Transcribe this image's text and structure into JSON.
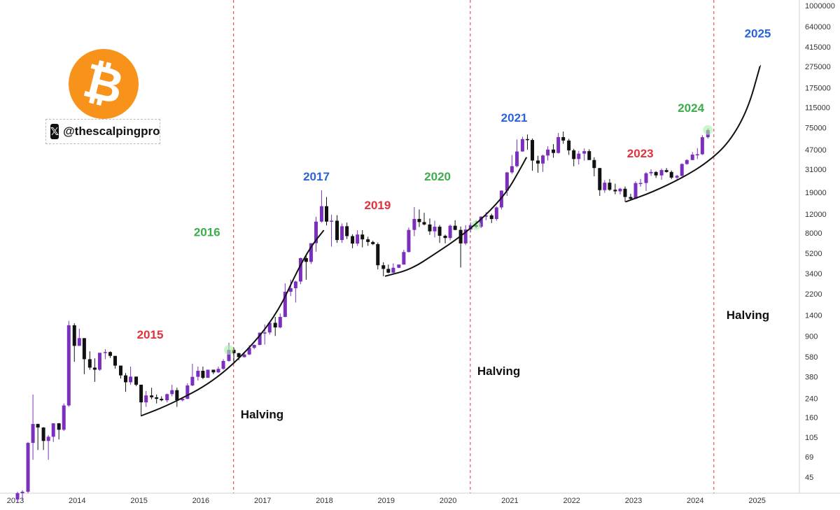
{
  "brand": {
    "logo_glyph": "₿",
    "x_glyph": "𝕏",
    "handle": "@thescalpingpro",
    "logo_color": "#f7931a"
  },
  "colors": {
    "bull": "#7b2fbe",
    "bear": "#111111",
    "red": "#e0323c",
    "green": "#3bad4a",
    "blue": "#2a63d8",
    "halving_line": "#e0323c"
  },
  "chart_data": {
    "type": "candlestick",
    "scale": "log",
    "ylim": [
      28,
      1000000
    ],
    "y_ticks": [
      "1000000",
      "640000",
      "415000",
      "275000",
      "175000",
      "115000",
      "75000",
      "47000",
      "31000",
      "19000",
      "12000",
      "8000",
      "5200",
      "3400",
      "2200",
      "1400",
      "900",
      "580",
      "380",
      "240",
      "160",
      "105",
      "69",
      "45"
    ],
    "x_ticks": [
      "2013",
      "2014",
      "2015",
      "2016",
      "2017",
      "2018",
      "2019",
      "2020",
      "2021",
      "2022",
      "2023",
      "2024",
      "2025"
    ],
    "halvings": [
      {
        "date": 2016.53,
        "label": "Halving"
      },
      {
        "date": 2020.36,
        "label": "Halving"
      },
      {
        "date": 2024.3,
        "label": "Halving"
      }
    ],
    "year_labels": [
      {
        "text": "2015",
        "color": "red",
        "year": 2015.18,
        "price": 850
      },
      {
        "text": "2016",
        "color": "green",
        "year": 2016.1,
        "price": 7500
      },
      {
        "text": "2017",
        "color": "blue",
        "year": 2017.87,
        "price": 24500
      },
      {
        "text": "2019",
        "color": "red",
        "year": 2018.86,
        "price": 13300
      },
      {
        "text": "2020",
        "color": "green",
        "year": 2019.83,
        "price": 24500
      },
      {
        "text": "2021",
        "color": "blue",
        "year": 2021.07,
        "price": 85000
      },
      {
        "text": "2023",
        "color": "red",
        "year": 2023.11,
        "price": 40000
      },
      {
        "text": "2024",
        "color": "green",
        "year": 2023.93,
        "price": 105000
      },
      {
        "text": "2025",
        "color": "blue",
        "year": 2025.01,
        "price": 510000
      }
    ],
    "curves": [
      {
        "points": [
          [
            2015.03,
            165
          ],
          [
            2015.5,
            210
          ],
          [
            2016.2,
            340
          ],
          [
            2016.8,
            700
          ],
          [
            2017.25,
            1500
          ],
          [
            2017.55,
            3500
          ],
          [
            2017.78,
            6000
          ],
          [
            2017.99,
            8500
          ]
        ]
      },
      {
        "points": [
          [
            2018.98,
            3200
          ],
          [
            2019.4,
            3700
          ],
          [
            2019.8,
            5200
          ],
          [
            2020.2,
            7400
          ],
          [
            2020.6,
            11500
          ],
          [
            2020.95,
            19000
          ],
          [
            2021.15,
            30000
          ],
          [
            2021.27,
            40000
          ]
        ]
      },
      {
        "points": [
          [
            2022.87,
            15500
          ],
          [
            2023.3,
            19000
          ],
          [
            2023.8,
            26000
          ],
          [
            2024.2,
            36000
          ],
          [
            2024.55,
            55000
          ],
          [
            2024.85,
            110000
          ],
          [
            2025.05,
            280000
          ]
        ]
      }
    ],
    "monthly_candles": [
      [
        2013.0,
        28,
        33,
        26,
        32
      ],
      [
        2013.08,
        32,
        34,
        28,
        33
      ],
      [
        2013.17,
        33,
        95,
        32,
        93
      ],
      [
        2013.25,
        93,
        260,
        65,
        139
      ],
      [
        2013.33,
        139,
        140,
        80,
        129
      ],
      [
        2013.42,
        129,
        130,
        80,
        97
      ],
      [
        2013.5,
        97,
        110,
        65,
        106
      ],
      [
        2013.58,
        106,
        125,
        95,
        141
      ],
      [
        2013.67,
        141,
        142,
        100,
        123
      ],
      [
        2013.75,
        123,
        215,
        120,
        206
      ],
      [
        2013.83,
        206,
        1240,
        200,
        1130
      ],
      [
        2013.92,
        1130,
        1180,
        520,
        730
      ],
      [
        2014.0,
        730,
        1050,
        730,
        860
      ],
      [
        2014.08,
        860,
        860,
        400,
        550
      ],
      [
        2014.17,
        550,
        650,
        440,
        460
      ],
      [
        2014.25,
        460,
        560,
        340,
        440
      ],
      [
        2014.33,
        440,
        630,
        430,
        630
      ],
      [
        2014.42,
        630,
        680,
        550,
        640
      ],
      [
        2014.5,
        640,
        650,
        565,
        590
      ],
      [
        2014.58,
        590,
        590,
        450,
        480
      ],
      [
        2014.67,
        480,
        480,
        365,
        390
      ],
      [
        2014.75,
        390,
        410,
        275,
        337
      ],
      [
        2014.83,
        337,
        470,
        320,
        380
      ],
      [
        2014.92,
        380,
        380,
        310,
        320
      ],
      [
        2015.0,
        320,
        320,
        165,
        220
      ],
      [
        2015.08,
        220,
        280,
        200,
        255
      ],
      [
        2015.17,
        255,
        300,
        235,
        245
      ],
      [
        2015.25,
        245,
        260,
        215,
        237
      ],
      [
        2015.33,
        237,
        250,
        225,
        230
      ],
      [
        2015.42,
        230,
        265,
        220,
        262
      ],
      [
        2015.5,
        262,
        320,
        250,
        285
      ],
      [
        2015.58,
        285,
        300,
        200,
        230
      ],
      [
        2015.67,
        230,
        245,
        225,
        237
      ],
      [
        2015.75,
        237,
        330,
        235,
        315
      ],
      [
        2015.83,
        315,
        500,
        310,
        378
      ],
      [
        2015.92,
        378,
        470,
        350,
        430
      ],
      [
        2016.0,
        430,
        470,
        360,
        370
      ],
      [
        2016.08,
        370,
        440,
        370,
        440
      ],
      [
        2016.17,
        440,
        440,
        400,
        416
      ],
      [
        2016.25,
        416,
        470,
        410,
        448
      ],
      [
        2016.33,
        448,
        550,
        440,
        530
      ],
      [
        2016.42,
        530,
        780,
        520,
        670
      ],
      [
        2016.5,
        670,
        700,
        500,
        625
      ],
      [
        2016.58,
        625,
        630,
        540,
        575
      ],
      [
        2016.67,
        575,
        620,
        570,
        608
      ],
      [
        2016.75,
        608,
        740,
        600,
        700
      ],
      [
        2016.83,
        700,
        750,
        680,
        745
      ],
      [
        2016.92,
        745,
        970,
        740,
        965
      ],
      [
        2017.0,
        965,
        1150,
        750,
        970
      ],
      [
        2017.08,
        970,
        1200,
        930,
        1190
      ],
      [
        2017.17,
        1190,
        1350,
        900,
        1080
      ],
      [
        2017.25,
        1080,
        1450,
        1060,
        1350
      ],
      [
        2017.33,
        1350,
        2750,
        1340,
        2300
      ],
      [
        2017.42,
        2300,
        2980,
        2100,
        2480
      ],
      [
        2017.5,
        2480,
        2910,
        1830,
        2860
      ],
      [
        2017.58,
        2860,
        4750,
        2700,
        4700
      ],
      [
        2017.67,
        4700,
        4980,
        2970,
        4340
      ],
      [
        2017.75,
        4340,
        6450,
        4150,
        6450
      ],
      [
        2017.83,
        6450,
        11300,
        5400,
        10200
      ],
      [
        2017.92,
        10200,
        19800,
        10000,
        14150
      ],
      [
        2018.0,
        14150,
        17200,
        9400,
        10200
      ],
      [
        2018.08,
        10200,
        11800,
        6000,
        10400
      ],
      [
        2018.17,
        10400,
        11700,
        6500,
        6900
      ],
      [
        2018.25,
        6900,
        9800,
        6500,
        9250
      ],
      [
        2018.33,
        9250,
        9990,
        7050,
        7500
      ],
      [
        2018.42,
        7500,
        7800,
        5800,
        6400
      ],
      [
        2018.5,
        6400,
        8500,
        6100,
        7750
      ],
      [
        2018.58,
        7750,
        8500,
        5900,
        7000
      ],
      [
        2018.67,
        7000,
        7400,
        6100,
        6620
      ],
      [
        2018.75,
        6620,
        6800,
        6200,
        6330
      ],
      [
        2018.83,
        6330,
        6550,
        3700,
        4040
      ],
      [
        2018.92,
        4040,
        4300,
        3200,
        3740
      ],
      [
        2019.0,
        3740,
        4100,
        3400,
        3450
      ],
      [
        2019.08,
        3450,
        4200,
        3400,
        3830
      ],
      [
        2019.17,
        3830,
        4100,
        3800,
        4100
      ],
      [
        2019.25,
        4100,
        5600,
        4100,
        5350
      ],
      [
        2019.33,
        5350,
        9000,
        5300,
        8550
      ],
      [
        2019.42,
        8550,
        13900,
        7500,
        10800
      ],
      [
        2019.5,
        10800,
        13200,
        9100,
        10100
      ],
      [
        2019.58,
        10100,
        12300,
        9400,
        9600
      ],
      [
        2019.67,
        9600,
        10900,
        7700,
        8300
      ],
      [
        2019.75,
        8300,
        10400,
        7300,
        9150
      ],
      [
        2019.83,
        9150,
        9500,
        6500,
        7550
      ],
      [
        2019.92,
        7550,
        7750,
        6430,
        7200
      ],
      [
        2020.0,
        7200,
        9600,
        6850,
        9350
      ],
      [
        2020.08,
        9350,
        10500,
        8500,
        8550
      ],
      [
        2020.17,
        8550,
        9200,
        3850,
        6420
      ],
      [
        2020.25,
        6420,
        9460,
        6200,
        8630
      ],
      [
        2020.33,
        8630,
        10070,
        8100,
        9450
      ],
      [
        2020.42,
        9450,
        10400,
        8900,
        9140
      ],
      [
        2020.5,
        9140,
        11450,
        8900,
        11340
      ],
      [
        2020.58,
        11340,
        12470,
        10500,
        11650
      ],
      [
        2020.67,
        11650,
        12070,
        9900,
        10780
      ],
      [
        2020.75,
        10780,
        14100,
        10400,
        13790
      ],
      [
        2020.83,
        13790,
        19800,
        13200,
        19700
      ],
      [
        2020.92,
        19700,
        29300,
        17600,
        28990
      ],
      [
        2021.0,
        28990,
        41900,
        28100,
        33100
      ],
      [
        2021.08,
        33100,
        58300,
        32300,
        45200
      ],
      [
        2021.17,
        45200,
        61800,
        45000,
        58800
      ],
      [
        2021.25,
        58800,
        64800,
        47000,
        57700
      ],
      [
        2021.33,
        57700,
        59500,
        30000,
        37300
      ],
      [
        2021.42,
        37300,
        41300,
        28800,
        35000
      ],
      [
        2021.5,
        35000,
        42300,
        29300,
        41500
      ],
      [
        2021.58,
        41500,
        50500,
        37300,
        47100
      ],
      [
        2021.67,
        47100,
        52900,
        39600,
        43800
      ],
      [
        2021.75,
        43800,
        67000,
        43300,
        61300
      ],
      [
        2021.83,
        61300,
        69000,
        53300,
        57000
      ],
      [
        2021.92,
        57000,
        59100,
        42000,
        46300
      ],
      [
        2022.0,
        46300,
        47900,
        33000,
        38500
      ],
      [
        2022.08,
        38500,
        45800,
        34300,
        43200
      ],
      [
        2022.17,
        43200,
        48200,
        37200,
        45500
      ],
      [
        2022.25,
        45500,
        47400,
        37700,
        37700
      ],
      [
        2022.33,
        37700,
        40000,
        26700,
        31800
      ],
      [
        2022.42,
        31800,
        31900,
        17600,
        19900
      ],
      [
        2022.5,
        19900,
        24600,
        18800,
        23300
      ],
      [
        2022.58,
        23300,
        25200,
        19600,
        20050
      ],
      [
        2022.67,
        20050,
        22800,
        18200,
        19400
      ],
      [
        2022.75,
        19400,
        20900,
        18200,
        20500
      ],
      [
        2022.83,
        20500,
        21500,
        15500,
        17200
      ],
      [
        2022.92,
        17200,
        18400,
        16300,
        16550
      ],
      [
        2023.0,
        16550,
        23950,
        16500,
        23100
      ],
      [
        2023.08,
        23100,
        25250,
        21400,
        23150
      ],
      [
        2023.17,
        23150,
        29200,
        19550,
        28450
      ],
      [
        2023.25,
        28450,
        31000,
        26900,
        29250
      ],
      [
        2023.33,
        29250,
        29800,
        25800,
        27200
      ],
      [
        2023.42,
        27200,
        31400,
        24800,
        30450
      ],
      [
        2023.5,
        30450,
        31800,
        28850,
        29250
      ],
      [
        2023.58,
        29250,
        30200,
        25100,
        25950
      ],
      [
        2023.67,
        25950,
        27500,
        24900,
        26950
      ],
      [
        2023.75,
        26950,
        35200,
        26550,
        34650
      ],
      [
        2023.83,
        34650,
        38400,
        34100,
        37700
      ],
      [
        2023.92,
        37700,
        44700,
        37600,
        42300
      ],
      [
        2024.0,
        42300,
        48600,
        38500,
        42600
      ],
      [
        2024.08,
        42600,
        63900,
        41900,
        61200
      ],
      [
        2024.17,
        61200,
        73800,
        59300,
        71300
      ]
    ]
  }
}
